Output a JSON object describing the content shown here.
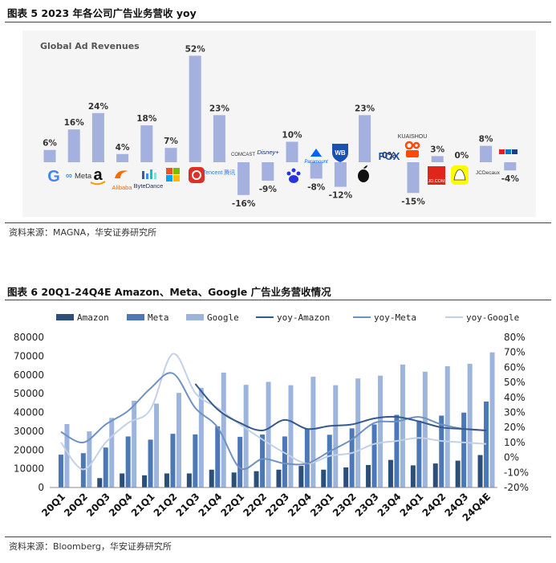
{
  "figure5": {
    "title": "图表  5 2023 年各公司广告业务营收 yoy",
    "source": "资料来源：MAGNA，华安证券研究所"
  },
  "figure6": {
    "title": "图表  6 20Q1-24Q4E Amazon、Meta、Google 广告业务营收情况",
    "source": "资料来源：Bloomberg，华安证券研究所"
  },
  "colors": {
    "bar5": "#a4b0de",
    "amazon": "#2b4f7a",
    "meta": "#4d78b7",
    "google": "#9db5dc",
    "yoy_amazon": "#34598e",
    "yoy_meta": "#6f91c4",
    "yoy_google": "#c3d1e8"
  },
  "chart_data": [
    {
      "type": "bar",
      "title": "Global Ad Revenues",
      "categories": [
        "Google",
        "Meta",
        "Amazon",
        "Alibaba",
        "ByteDance",
        "Microsoft",
        "Pinduoduo",
        "Tencent",
        "Comcast",
        "Disney+",
        "Baidu",
        "Paramount",
        "Warner Bros",
        "Apple",
        "FOX",
        "Kuaishou",
        "JD.com",
        "Snapchat",
        "JCDecaux",
        "RTL"
      ],
      "values": [
        6,
        16,
        24,
        4,
        18,
        7,
        52,
        23,
        -16,
        -9,
        10,
        -8,
        -12,
        23,
        0,
        -15,
        3,
        0,
        8,
        -4
      ],
      "labels": [
        "6%",
        "16%",
        "24%",
        "4%",
        "18%",
        "7%",
        "52%",
        "23%",
        "-16%",
        "-9%",
        "10%",
        "-8%",
        "-12%",
        "23%",
        "0%",
        "-15%",
        "3%",
        "0%",
        "8%",
        "-4%"
      ],
      "logo_text": {
        "meta": "Meta",
        "alibaba": "Alibaba",
        "bytedance": "ByteDance",
        "tencent": "Tencent 腾讯",
        "comcast": "COMCAST",
        "disney": "Disney+",
        "paramount": "Paramount",
        "wb": "WB",
        "fox": "FOX",
        "kuaishou": "KUAISHOU",
        "jd": "JD.COM",
        "jcdecaux": "JCDecaux",
        "rtl": "RTL"
      },
      "unit": "%"
    },
    {
      "type": "bar+line",
      "categories": [
        "20Q1",
        "20Q2",
        "20Q3",
        "20Q4",
        "21Q1",
        "21Q2",
        "21Q3",
        "21Q4",
        "22Q1",
        "22Q2",
        "22Q3",
        "22Q4",
        "23Q1",
        "23Q2",
        "23Q3",
        "23Q4",
        "24Q1",
        "24Q2",
        "24Q3",
        "24Q4E"
      ],
      "series": [
        {
          "name": "Amazon",
          "kind": "bar",
          "axis": "left",
          "values": [
            null,
            null,
            5000,
            7500,
            6500,
            7500,
            7500,
            9500,
            8000,
            8700,
            9500,
            11500,
            9500,
            10700,
            12000,
            14700,
            11800,
            12800,
            14300,
            17300
          ]
        },
        {
          "name": "Meta",
          "kind": "bar",
          "axis": "left",
          "values": [
            17500,
            18300,
            21300,
            27200,
            25500,
            28600,
            28300,
            32600,
            27000,
            28200,
            27200,
            31300,
            28100,
            31500,
            33600,
            38700,
            35600,
            38300,
            39900,
            45800
          ]
        },
        {
          "name": "Google",
          "kind": "bar",
          "axis": "left",
          "values": [
            33800,
            29900,
            37100,
            46200,
            44700,
            50400,
            53100,
            61200,
            54700,
            56300,
            54500,
            59000,
            54500,
            58100,
            59600,
            65500,
            61700,
            64600,
            65900,
            72000
          ]
        },
        {
          "name": "yoy-Amazon",
          "kind": "line",
          "axis": "right",
          "values": [
            null,
            null,
            null,
            null,
            null,
            null,
            49,
            32,
            23,
            18,
            25,
            19,
            21,
            22,
            26,
            27,
            24,
            20,
            19,
            18
          ]
        },
        {
          "name": "yoy-Meta",
          "kind": "line",
          "axis": "right",
          "values": [
            17,
            10,
            22,
            31,
            46,
            56,
            33,
            20,
            -7,
            -1,
            -4,
            -4,
            4,
            12,
            23,
            24,
            27,
            22,
            19,
            18
          ]
        },
        {
          "name": "yoy-Google",
          "kind": "line",
          "axis": "right",
          "values": [
            10,
            -8,
            10,
            23,
            32,
            69,
            43,
            33,
            22,
            12,
            3,
            -4,
            1,
            3,
            9,
            11,
            13,
            11,
            10,
            9
          ]
        }
      ],
      "legend": [
        "Amazon",
        "Meta",
        "Google",
        "yoy-Amazon",
        "yoy-Meta",
        "yoy-Google"
      ],
      "legend_position": "top",
      "ylim_left": [
        0,
        80000
      ],
      "yticks_left": [
        "0",
        "10000",
        "20000",
        "30000",
        "40000",
        "50000",
        "60000",
        "70000",
        "80000"
      ],
      "ylim_right": [
        -20,
        80
      ],
      "yticks_right": [
        "-20%",
        "-10%",
        "0%",
        "10%",
        "20%",
        "30%",
        "40%",
        "50%",
        "60%",
        "70%",
        "80%"
      ]
    }
  ]
}
